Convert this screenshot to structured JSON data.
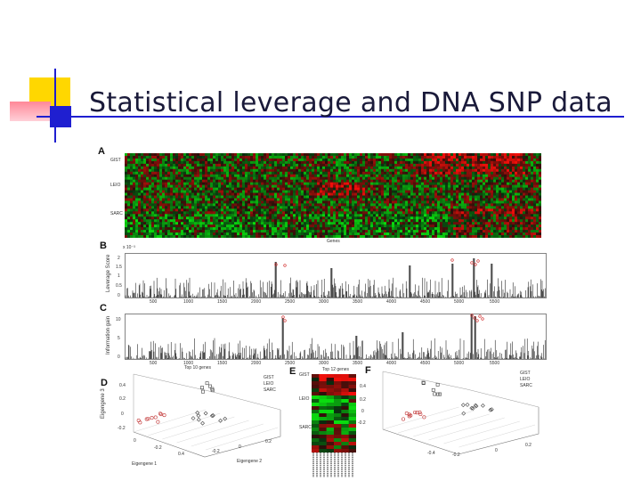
{
  "title": "Statistical leverage and DNA SNP data",
  "colors": {
    "yellow": "#ffd700",
    "blue": "#1f1fd0",
    "pink": "#ff9aa8",
    "title": "#1a1a3a",
    "heat_green": "#0f8a1a",
    "heat_red": "#d01010"
  },
  "figure": {
    "panels": {
      "a": "A",
      "b": "B",
      "c": "C",
      "d": "D",
      "e": "E",
      "f": "F"
    },
    "heatmap_a": {
      "row_labels": [
        "GIST",
        "LEIO",
        "SARC"
      ],
      "x_label": "Genes"
    },
    "leverage_b": {
      "scale": "x 10⁻³",
      "y_label": "Leverage Score",
      "y_ticks": [
        "2",
        "1.5",
        "1",
        "0.5",
        "0"
      ],
      "x_ticks": [
        "500",
        "1000",
        "1500",
        "2000",
        "2500",
        "3000",
        "3500",
        "4000",
        "4500",
        "5000",
        "5500"
      ]
    },
    "info_c": {
      "y_label": "Information gain",
      "y_ticks": [
        "10",
        "5",
        "0"
      ],
      "x_ticks": [
        "500",
        "1000",
        "1500",
        "2000",
        "2500",
        "3000",
        "3500",
        "4000",
        "4500",
        "5000",
        "5500"
      ],
      "x_label": "Top 10 genes"
    },
    "pca_d": {
      "legend": [
        "GIST",
        "LEIO",
        "SARC"
      ],
      "z_label": "Eigengene 3",
      "x_label": "Eigengene 1",
      "y_label": "Eigengene 2",
      "z_ticks": [
        "0.4",
        "0.2",
        "0",
        "-0.2"
      ],
      "x_ticks": [
        "0",
        "-0.2",
        "0.4"
      ],
      "y_ticks": [
        "-0.2",
        "0",
        "0.2"
      ]
    },
    "heat_e": {
      "title": "Top 12 genes",
      "row_labels": [
        "GIST",
        "LEIO",
        "SARC"
      ]
    },
    "pca_f": {
      "legend": [
        "GIST",
        "LEIO",
        "SARC"
      ],
      "z_ticks": [
        "0.4",
        "0.2",
        "0",
        "-0.2"
      ],
      "x_ticks": [
        "-0.4",
        "-0.2",
        "0",
        "0.2"
      ]
    }
  }
}
